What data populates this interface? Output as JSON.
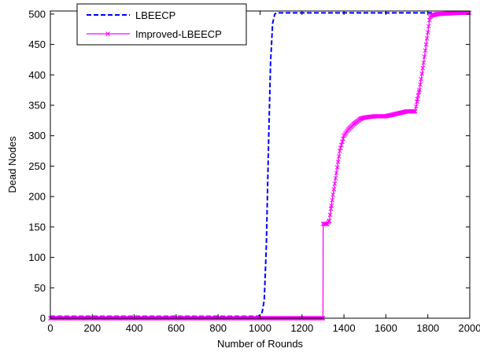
{
  "chart_data": {
    "type": "line",
    "xlabel": "Number of Rounds",
    "ylabel": "Dead Nodes",
    "xlim": [
      0,
      2000
    ],
    "ylim": [
      0,
      505
    ],
    "xticks": [
      0,
      200,
      400,
      600,
      800,
      1000,
      1200,
      1400,
      1600,
      1800,
      2000
    ],
    "yticks": [
      0,
      50,
      100,
      150,
      200,
      250,
      300,
      350,
      400,
      450,
      500
    ],
    "legend_position": "top-left",
    "series": [
      {
        "name": "LBEECP",
        "color": "#0000ff",
        "style": "dashed",
        "x": [
          0,
          990,
          1000,
          1010,
          1020,
          1030,
          1040,
          1050,
          1060,
          1070,
          1080,
          2000
        ],
        "y": [
          3,
          3,
          5,
          10,
          30,
          120,
          280,
          420,
          485,
          500,
          502,
          502
        ]
      },
      {
        "name": "Improved-LBEECP",
        "color": "#ff00ff",
        "style": "solid-x-markers",
        "x": [
          0,
          1295,
          1300,
          1301,
          1320,
          1330,
          1340,
          1360,
          1380,
          1400,
          1420,
          1450,
          1480,
          1500,
          1550,
          1600,
          1650,
          1700,
          1740,
          1750,
          1760,
          1780,
          1800,
          1810,
          1820,
          1850,
          1900,
          1950,
          2000
        ],
        "y": [
          0,
          0,
          0,
          155,
          155,
          160,
          185,
          230,
          275,
          300,
          310,
          320,
          328,
          330,
          332,
          332,
          336,
          340,
          340,
          360,
          375,
          420,
          470,
          495,
          498,
          500,
          501,
          502,
          502
        ]
      }
    ]
  }
}
